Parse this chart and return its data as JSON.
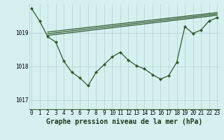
{
  "background_color": "#d6f0f0",
  "grid_color": "#b0d0d0",
  "line_color": "#2d5a2d",
  "marker_color": "#2d5a2d",
  "title": "Graphe pression niveau de la mer (hPa)",
  "ylim": [
    1016.72,
    1019.85
  ],
  "yticks": [
    1017,
    1018,
    1019
  ],
  "xlim": [
    -0.3,
    23.3
  ],
  "xticks": [
    0,
    1,
    2,
    3,
    4,
    5,
    6,
    7,
    8,
    9,
    10,
    11,
    12,
    13,
    14,
    15,
    16,
    17,
    18,
    19,
    20,
    21,
    22,
    23
  ],
  "xtick_labels": [
    "0",
    "1",
    "2",
    "3",
    "4",
    "5",
    "6",
    "7",
    "8",
    "9",
    "10",
    "11",
    "12",
    "13",
    "14",
    "15",
    "16",
    "17",
    "18",
    "19",
    "20",
    "21",
    "22",
    "23"
  ],
  "main_line_x": [
    0,
    1,
    2,
    3,
    4,
    5,
    6,
    7,
    8,
    9,
    10,
    11,
    12,
    13,
    14,
    15,
    16,
    17,
    18,
    19,
    20,
    21,
    22,
    23
  ],
  "main_line_y": [
    1019.72,
    1019.35,
    1018.88,
    1018.72,
    1018.15,
    1017.82,
    1017.65,
    1017.42,
    1017.82,
    1018.05,
    1018.28,
    1018.42,
    1018.18,
    1018.02,
    1017.92,
    1017.75,
    1017.62,
    1017.72,
    1018.12,
    1019.18,
    1018.98,
    1019.08,
    1019.35,
    1019.45
  ],
  "trend1_x": [
    2,
    23
  ],
  "trend1_y": [
    1019.02,
    1019.6
  ],
  "trend2_x": [
    2,
    23
  ],
  "trend2_y": [
    1018.97,
    1019.56
  ],
  "trend3_x": [
    2,
    23
  ],
  "trend3_y": [
    1018.92,
    1019.52
  ],
  "tick_fontsize": 5.5,
  "title_fontsize": 7
}
